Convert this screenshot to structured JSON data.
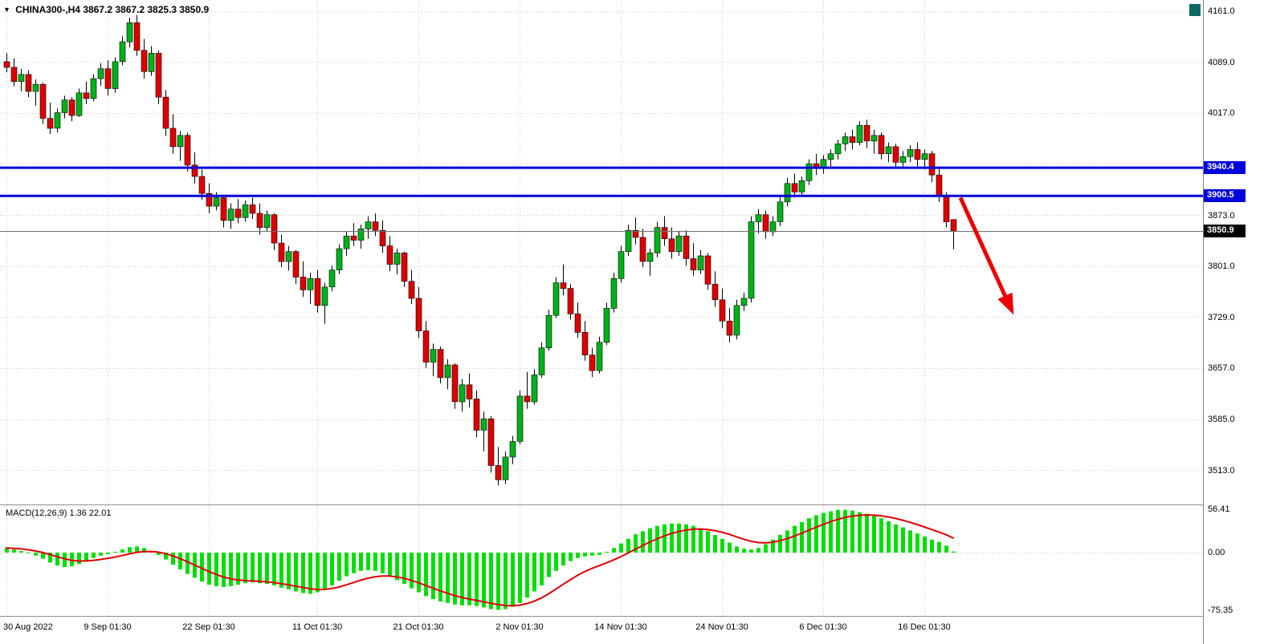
{
  "header": {
    "dropdown_icon": "▼",
    "symbol": "CHINA300-,H4",
    "quote": "3867.2 3867.2 3825.3 3850.9"
  },
  "decorations": {
    "corner_marker_color": "#0d6a63"
  },
  "chart_data": {
    "type": "candlestick",
    "title": "CHINA300- H4 candlestick chart with MACD",
    "price_axis": {
      "ylim": [
        3464,
        4177
      ],
      "tick_labels": [
        {
          "price": 4161.0,
          "label": "4161.0"
        },
        {
          "price": 4089.0,
          "label": "4089.0"
        },
        {
          "price": 4017.0,
          "label": "4017.0"
        },
        {
          "price": 3873.0,
          "label": "3873.0"
        },
        {
          "price": 3801.0,
          "label": "3801.0"
        },
        {
          "price": 3729.0,
          "label": "3729.0"
        },
        {
          "price": 3657.0,
          "label": "3657.0"
        },
        {
          "price": 3585.0,
          "label": "3585.0"
        },
        {
          "price": 3513.0,
          "label": "3513.0"
        }
      ],
      "grid_prices": [
        4161,
        4089,
        4017,
        3945,
        3873,
        3801,
        3729,
        3657,
        3585,
        3513
      ]
    },
    "time_axis": {
      "ticks": [
        {
          "index": 0,
          "label": "30 Aug 2022",
          "align": "left"
        },
        {
          "index": 14,
          "label": "9 Sep 01:30"
        },
        {
          "index": 28,
          "label": "22 Sep 01:30"
        },
        {
          "index": 43,
          "label": "11 Oct 01:30"
        },
        {
          "index": 57,
          "label": "21 Oct 01:30"
        },
        {
          "index": 71,
          "label": "2 Nov 01:30"
        },
        {
          "index": 85,
          "label": "14 Nov 01:30"
        },
        {
          "index": 99,
          "label": "24 Nov 01:30"
        },
        {
          "index": 113,
          "label": "6 Dec 01:30"
        },
        {
          "index": 127,
          "label": "16 Dec 01:30"
        }
      ]
    },
    "hlines": [
      {
        "price": 3940.4,
        "label": "3940.4",
        "color": "#0000dc",
        "width": 3,
        "name": "resistance-line-3940"
      },
      {
        "price": 3900.5,
        "label": "3900.5",
        "color": "#0000dc",
        "width": 3,
        "name": "support-line-3900"
      }
    ],
    "last_price": {
      "price": 3850.9,
      "label": "3850.9",
      "line_color": "#707070",
      "badge_color": "#000000"
    },
    "arrow": {
      "from_index": 132,
      "from_price": 3898,
      "to_index": 139,
      "to_price": 3741,
      "color": "#ef0000"
    },
    "colors": {
      "bull": "#00b21a",
      "bear": "#e00000",
      "wick": "#000000",
      "grid": "#c8c8c8",
      "macd_bar": "#00e000",
      "macd_signal": "#e00000"
    },
    "candles": [
      [
        4090,
        4102,
        4075,
        4082
      ],
      [
        4082,
        4095,
        4055,
        4062
      ],
      [
        4062,
        4080,
        4048,
        4072
      ],
      [
        4072,
        4078,
        4040,
        4048
      ],
      [
        4048,
        4065,
        4028,
        4058
      ],
      [
        4058,
        4060,
        4002,
        4010
      ],
      [
        4010,
        4032,
        3988,
        3996
      ],
      [
        3996,
        4024,
        3990,
        4018
      ],
      [
        4018,
        4042,
        4010,
        4036
      ],
      [
        4036,
        4040,
        4006,
        4014
      ],
      [
        4014,
        4052,
        4012,
        4046
      ],
      [
        4046,
        4062,
        4030,
        4038
      ],
      [
        4038,
        4072,
        4034,
        4066
      ],
      [
        4066,
        4088,
        4056,
        4080
      ],
      [
        4080,
        4092,
        4042,
        4052
      ],
      [
        4052,
        4096,
        4046,
        4090
      ],
      [
        4090,
        4126,
        4085,
        4118
      ],
      [
        4118,
        4152,
        4110,
        4145
      ],
      [
        4145,
        4156,
        4098,
        4106
      ],
      [
        4106,
        4122,
        4066,
        4076
      ],
      [
        4076,
        4112,
        4070,
        4102
      ],
      [
        4102,
        4106,
        4030,
        4040
      ],
      [
        4040,
        4050,
        3985,
        3996
      ],
      [
        3996,
        4016,
        3960,
        3970
      ],
      [
        3970,
        3992,
        3950,
        3986
      ],
      [
        3986,
        3990,
        3935,
        3944
      ],
      [
        3944,
        3962,
        3918,
        3928
      ],
      [
        3928,
        3938,
        3895,
        3904
      ],
      [
        3904,
        3918,
        3876,
        3886
      ],
      [
        3886,
        3906,
        3880,
        3898
      ],
      [
        3898,
        3902,
        3856,
        3866
      ],
      [
        3866,
        3890,
        3854,
        3882
      ],
      [
        3882,
        3896,
        3862,
        3870
      ],
      [
        3870,
        3894,
        3864,
        3888
      ],
      [
        3888,
        3898,
        3868,
        3876
      ],
      [
        3876,
        3890,
        3846,
        3856
      ],
      [
        3856,
        3880,
        3850,
        3874
      ],
      [
        3874,
        3876,
        3824,
        3834
      ],
      [
        3834,
        3846,
        3800,
        3808
      ],
      [
        3808,
        3830,
        3795,
        3822
      ],
      [
        3822,
        3824,
        3776,
        3786
      ],
      [
        3786,
        3808,
        3758,
        3768
      ],
      [
        3768,
        3792,
        3748,
        3784
      ],
      [
        3784,
        3796,
        3736,
        3746
      ],
      [
        3746,
        3778,
        3720,
        3772
      ],
      [
        3772,
        3802,
        3766,
        3796
      ],
      [
        3796,
        3832,
        3790,
        3826
      ],
      [
        3826,
        3850,
        3816,
        3844
      ],
      [
        3844,
        3862,
        3830,
        3838
      ],
      [
        3838,
        3860,
        3826,
        3854
      ],
      [
        3854,
        3872,
        3840,
        3864
      ],
      [
        3864,
        3876,
        3844,
        3852
      ],
      [
        3852,
        3866,
        3820,
        3830
      ],
      [
        3830,
        3844,
        3794,
        3804
      ],
      [
        3804,
        3826,
        3790,
        3820
      ],
      [
        3820,
        3822,
        3772,
        3780
      ],
      [
        3780,
        3796,
        3748,
        3756
      ],
      [
        3756,
        3772,
        3700,
        3710
      ],
      [
        3710,
        3724,
        3658,
        3666
      ],
      [
        3666,
        3692,
        3646,
        3684
      ],
      [
        3684,
        3688,
        3636,
        3644
      ],
      [
        3644,
        3670,
        3628,
        3662
      ],
      [
        3662,
        3664,
        3600,
        3610
      ],
      [
        3610,
        3642,
        3596,
        3634
      ],
      [
        3634,
        3650,
        3602,
        3614
      ],
      [
        3614,
        3626,
        3560,
        3570
      ],
      [
        3570,
        3596,
        3540,
        3586
      ],
      [
        3586,
        3590,
        3510,
        3520
      ],
      [
        3520,
        3546,
        3492,
        3500
      ],
      [
        3500,
        3540,
        3494,
        3532
      ],
      [
        3532,
        3562,
        3522,
        3554
      ],
      [
        3554,
        3626,
        3550,
        3618
      ],
      [
        3618,
        3652,
        3600,
        3610
      ],
      [
        3610,
        3656,
        3606,
        3648
      ],
      [
        3648,
        3694,
        3644,
        3686
      ],
      [
        3686,
        3740,
        3682,
        3732
      ],
      [
        3732,
        3786,
        3728,
        3778
      ],
      [
        3778,
        3804,
        3760,
        3770
      ],
      [
        3770,
        3776,
        3726,
        3734
      ],
      [
        3734,
        3750,
        3700,
        3708
      ],
      [
        3708,
        3724,
        3668,
        3676
      ],
      [
        3676,
        3686,
        3645,
        3654
      ],
      [
        3654,
        3702,
        3650,
        3694
      ],
      [
        3694,
        3750,
        3690,
        3742
      ],
      [
        3742,
        3792,
        3736,
        3784
      ],
      [
        3784,
        3830,
        3778,
        3822
      ],
      [
        3822,
        3860,
        3816,
        3852
      ],
      [
        3852,
        3870,
        3832,
        3842
      ],
      [
        3842,
        3854,
        3800,
        3808
      ],
      [
        3808,
        3826,
        3788,
        3820
      ],
      [
        3820,
        3864,
        3814,
        3856
      ],
      [
        3856,
        3872,
        3830,
        3840
      ],
      [
        3840,
        3856,
        3812,
        3822
      ],
      [
        3822,
        3850,
        3816,
        3844
      ],
      [
        3844,
        3852,
        3802,
        3812
      ],
      [
        3812,
        3834,
        3788,
        3796
      ],
      [
        3796,
        3824,
        3790,
        3816
      ],
      [
        3816,
        3820,
        3768,
        3776
      ],
      [
        3776,
        3794,
        3744,
        3754
      ],
      [
        3754,
        3770,
        3714,
        3724
      ],
      [
        3724,
        3742,
        3694,
        3704
      ],
      [
        3704,
        3754,
        3698,
        3746
      ],
      [
        3746,
        3764,
        3738,
        3756
      ],
      [
        3756,
        3872,
        3750,
        3864
      ],
      [
        3864,
        3882,
        3848,
        3874
      ],
      [
        3874,
        3880,
        3840,
        3850
      ],
      [
        3850,
        3872,
        3844,
        3864
      ],
      [
        3864,
        3900,
        3858,
        3892
      ],
      [
        3892,
        3926,
        3886,
        3918
      ],
      [
        3918,
        3932,
        3898,
        3906
      ],
      [
        3906,
        3928,
        3900,
        3922
      ],
      [
        3922,
        3952,
        3916,
        3946
      ],
      [
        3946,
        3960,
        3930,
        3940
      ],
      [
        3940,
        3958,
        3932,
        3952
      ],
      [
        3952,
        3966,
        3940,
        3960
      ],
      [
        3960,
        3980,
        3952,
        3974
      ],
      [
        3974,
        3990,
        3964,
        3984
      ],
      [
        3984,
        3994,
        3966,
        3976
      ],
      [
        3976,
        4006,
        3972,
        4000
      ],
      [
        4000,
        4008,
        3968,
        3978
      ],
      [
        3978,
        3994,
        3960,
        3986
      ],
      [
        3986,
        3990,
        3952,
        3960
      ],
      [
        3960,
        3976,
        3948,
        3970
      ],
      [
        3970,
        3974,
        3940,
        3948
      ],
      [
        3948,
        3964,
        3940,
        3956
      ],
      [
        3956,
        3972,
        3948,
        3966
      ],
      [
        3966,
        3976,
        3942,
        3952
      ],
      [
        3952,
        3966,
        3938,
        3960
      ],
      [
        3960,
        3964,
        3920,
        3930
      ],
      [
        3930,
        3940,
        3892,
        3900
      ],
      [
        3900,
        3906,
        3856,
        3864
      ],
      [
        3867.2,
        3867.2,
        3825.3,
        3850.9
      ]
    ],
    "macd": {
      "label": "MACD(12,26,9) 1.36 22.01",
      "ylim": [
        -83,
        62
      ],
      "axis_labels": [
        {
          "value": 56.41,
          "label": "56.41"
        },
        {
          "value": 0,
          "label": "0.00"
        },
        {
          "value": -75.35,
          "label": "-75.35"
        }
      ],
      "signal_period": 9,
      "histogram": [
        6,
        4,
        2,
        -1,
        -4,
        -8,
        -13,
        -17,
        -19,
        -18,
        -15,
        -11,
        -7,
        -4,
        -2,
        1,
        4,
        7,
        8,
        6,
        2,
        -3,
        -9,
        -16,
        -22,
        -28,
        -33,
        -38,
        -42,
        -44,
        -45,
        -44,
        -42,
        -40,
        -39,
        -40,
        -41,
        -43,
        -46,
        -48,
        -51,
        -53,
        -54,
        -52,
        -48,
        -43,
        -37,
        -31,
        -27,
        -24,
        -23,
        -24,
        -27,
        -31,
        -36,
        -41,
        -47,
        -52,
        -57,
        -61,
        -64,
        -66,
        -68,
        -69,
        -69,
        -70,
        -72,
        -74,
        -75,
        -74,
        -71,
        -66,
        -59,
        -51,
        -43,
        -32,
        -24,
        -17,
        -11,
        -7,
        -5,
        -4,
        -3,
        1,
        6,
        12,
        18,
        24,
        28,
        32,
        35,
        37,
        38,
        38,
        37,
        35,
        32,
        28,
        23,
        18,
        13,
        8,
        5,
        4,
        6,
        11,
        17,
        23,
        29,
        35,
        40,
        45,
        49,
        52,
        54,
        56,
        56,
        55,
        53,
        51,
        48,
        45,
        41,
        37,
        33,
        29,
        25,
        21,
        17,
        14,
        9,
        1.4
      ]
    }
  }
}
